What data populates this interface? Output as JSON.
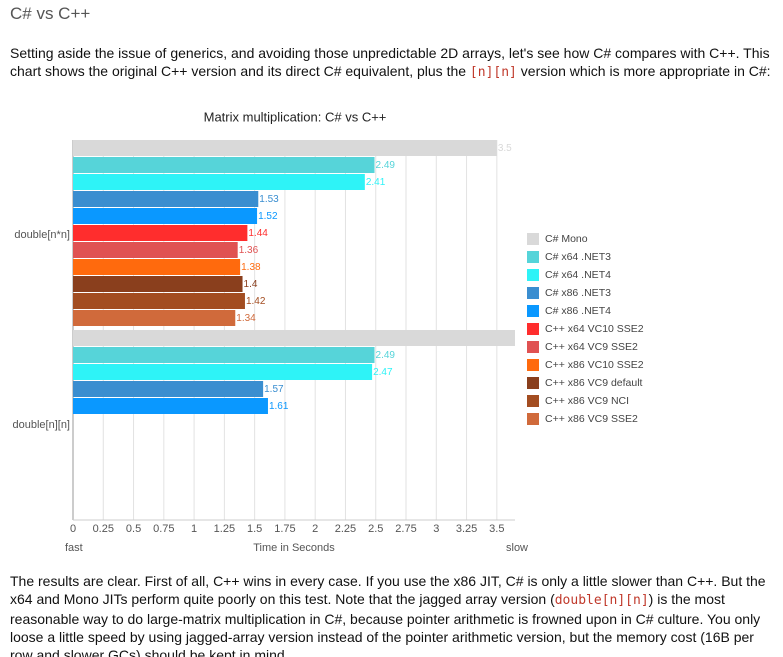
{
  "heading": "C# vs C++",
  "intro": {
    "before": "Setting aside the issue of generics, and avoiding those unpredictable 2D arrays, let's see how C# compares with C++. This chart shows the original C++ version and its direct C# equivalent, plus the ",
    "code": "[n][n]",
    "after": " version which is more appropriate in C#:"
  },
  "chart_data": {
    "type": "hbar",
    "title": "Matrix multiplication: C# vs C++",
    "categories": [
      "double[n*n]",
      "double[n][n]"
    ],
    "x_label": "Time in Seconds",
    "x_start_label": "fast",
    "x_end_label": "slow",
    "xlim": [
      0,
      3.65
    ],
    "xticks": [
      0,
      0.25,
      0.5,
      0.75,
      1,
      1.25,
      1.5,
      1.75,
      2,
      2.25,
      2.5,
      2.75,
      3,
      3.25,
      3.5
    ],
    "grid": true,
    "series": [
      {
        "name": "C# Mono",
        "color": "#d9d9d9",
        "values": [
          3.5,
          3.65
        ],
        "value_labels": [
          "3.5",
          null
        ]
      },
      {
        "name": "C# x64 .NET3",
        "color": "#56d4d9",
        "values": [
          2.49,
          2.49
        ]
      },
      {
        "name": "C# x64 .NET4",
        "color": "#2ef3f7",
        "values": [
          2.41,
          2.47
        ]
      },
      {
        "name": "C# x86 .NET3",
        "color": "#3a8ed0",
        "values": [
          1.53,
          1.57
        ]
      },
      {
        "name": "C# x86 .NET4",
        "color": "#0a98ff",
        "values": [
          1.52,
          1.61
        ]
      },
      {
        "name": "C++ x64 VC10 SSE2",
        "color": "#ff2d2d",
        "values": [
          1.44,
          null
        ]
      },
      {
        "name": "C++ x64 VC9 SSE2",
        "color": "#e05252",
        "values": [
          1.36,
          null
        ]
      },
      {
        "name": "C++ x86 VC10 SSE2",
        "color": "#ff6a0d",
        "values": [
          1.38,
          null
        ]
      },
      {
        "name": "C++ x86 VC9 default",
        "color": "#8a3f1d",
        "values": [
          1.4,
          null
        ]
      },
      {
        "name": "C++ x86 VC9 NCI",
        "color": "#a34d21",
        "values": [
          1.42,
          null
        ]
      },
      {
        "name": "C++ x86 VC9 SSE2",
        "color": "#d06a3b",
        "values": [
          1.34,
          null
        ]
      }
    ]
  },
  "conclusion": {
    "before": "The results are clear. First of all, C++ wins in every case. If you use the x86 JIT, C# is only a little slower than C++. But the x64 and Mono JITs perform quite poorly on this test. Note that the jagged array version (",
    "code": "double[n][n]",
    "after": ") is the most reasonable way to do large-matrix multiplication in C#, because pointer arithmetic is frowned upon in C# culture. You only loose a little speed by using jagged-array version instead of the pointer arithmetic version, but the memory cost (16B per row and slower GCs) should be kept in mind."
  }
}
